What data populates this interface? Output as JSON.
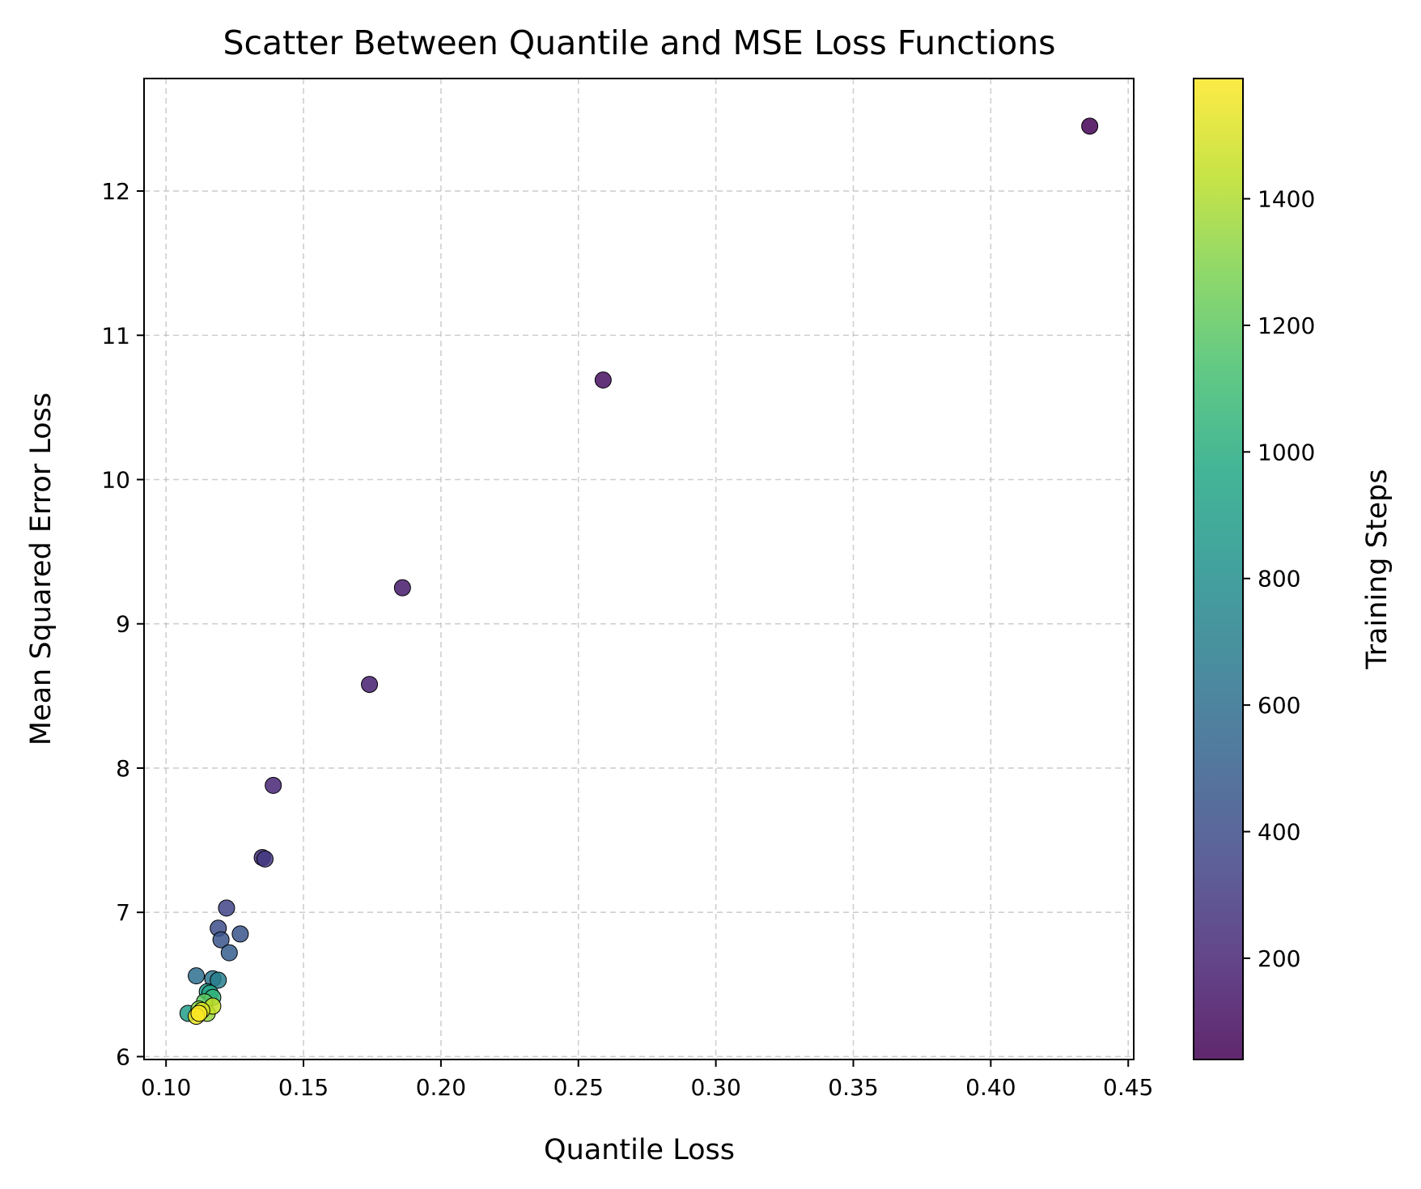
{
  "chart_data": {
    "type": "scatter",
    "title": "Scatter Between Quantile and MSE Loss Functions",
    "xlabel": "Quantile Loss",
    "ylabel": "Mean Squared Error Loss",
    "xlim": [
      0.092,
      0.452
    ],
    "ylim": [
      5.98,
      12.78
    ],
    "xticks": [
      0.1,
      0.15,
      0.2,
      0.25,
      0.3,
      0.35,
      0.4,
      0.45
    ],
    "xtick_labels": [
      "0.10",
      "0.15",
      "0.20",
      "0.25",
      "0.30",
      "0.35",
      "0.40",
      "0.45"
    ],
    "yticks": [
      6,
      7,
      8,
      9,
      10,
      11,
      12
    ],
    "ytick_labels": [
      "6",
      "7",
      "8",
      "9",
      "10",
      "11",
      "12"
    ],
    "grid": true,
    "colorbar": {
      "label": "Training Steps",
      "range": [
        40,
        1590
      ],
      "colormap": "viridis",
      "ticks": [
        200,
        400,
        600,
        800,
        1000,
        1200,
        1400
      ],
      "tick_labels": [
        "200",
        "400",
        "600",
        "800",
        "1000",
        "1200",
        "1400"
      ]
    },
    "points": [
      {
        "x": 0.436,
        "y": 12.45,
        "c": 50
      },
      {
        "x": 0.259,
        "y": 10.69,
        "c": 100
      },
      {
        "x": 0.186,
        "y": 9.25,
        "c": 150
      },
      {
        "x": 0.174,
        "y": 8.58,
        "c": 175
      },
      {
        "x": 0.139,
        "y": 7.88,
        "c": 200
      },
      {
        "x": 0.135,
        "y": 7.38,
        "c": 250
      },
      {
        "x": 0.136,
        "y": 7.37,
        "c": 300
      },
      {
        "x": 0.122,
        "y": 7.03,
        "c": 350
      },
      {
        "x": 0.119,
        "y": 6.89,
        "c": 400
      },
      {
        "x": 0.127,
        "y": 6.85,
        "c": 450
      },
      {
        "x": 0.12,
        "y": 6.81,
        "c": 450
      },
      {
        "x": 0.123,
        "y": 6.72,
        "c": 500
      },
      {
        "x": 0.111,
        "y": 6.56,
        "c": 600
      },
      {
        "x": 0.117,
        "y": 6.54,
        "c": 650
      },
      {
        "x": 0.119,
        "y": 6.53,
        "c": 700
      },
      {
        "x": 0.115,
        "y": 6.45,
        "c": 850
      },
      {
        "x": 0.116,
        "y": 6.44,
        "c": 950
      },
      {
        "x": 0.117,
        "y": 6.41,
        "c": 1050
      },
      {
        "x": 0.114,
        "y": 6.38,
        "c": 1200
      },
      {
        "x": 0.108,
        "y": 6.3,
        "c": 900
      },
      {
        "x": 0.112,
        "y": 6.33,
        "c": 1300
      },
      {
        "x": 0.115,
        "y": 6.3,
        "c": 1350
      },
      {
        "x": 0.117,
        "y": 6.35,
        "c": 1450
      },
      {
        "x": 0.113,
        "y": 6.32,
        "c": 1500
      },
      {
        "x": 0.111,
        "y": 6.28,
        "c": 1550
      },
      {
        "x": 0.112,
        "y": 6.3,
        "c": 1590
      }
    ]
  }
}
